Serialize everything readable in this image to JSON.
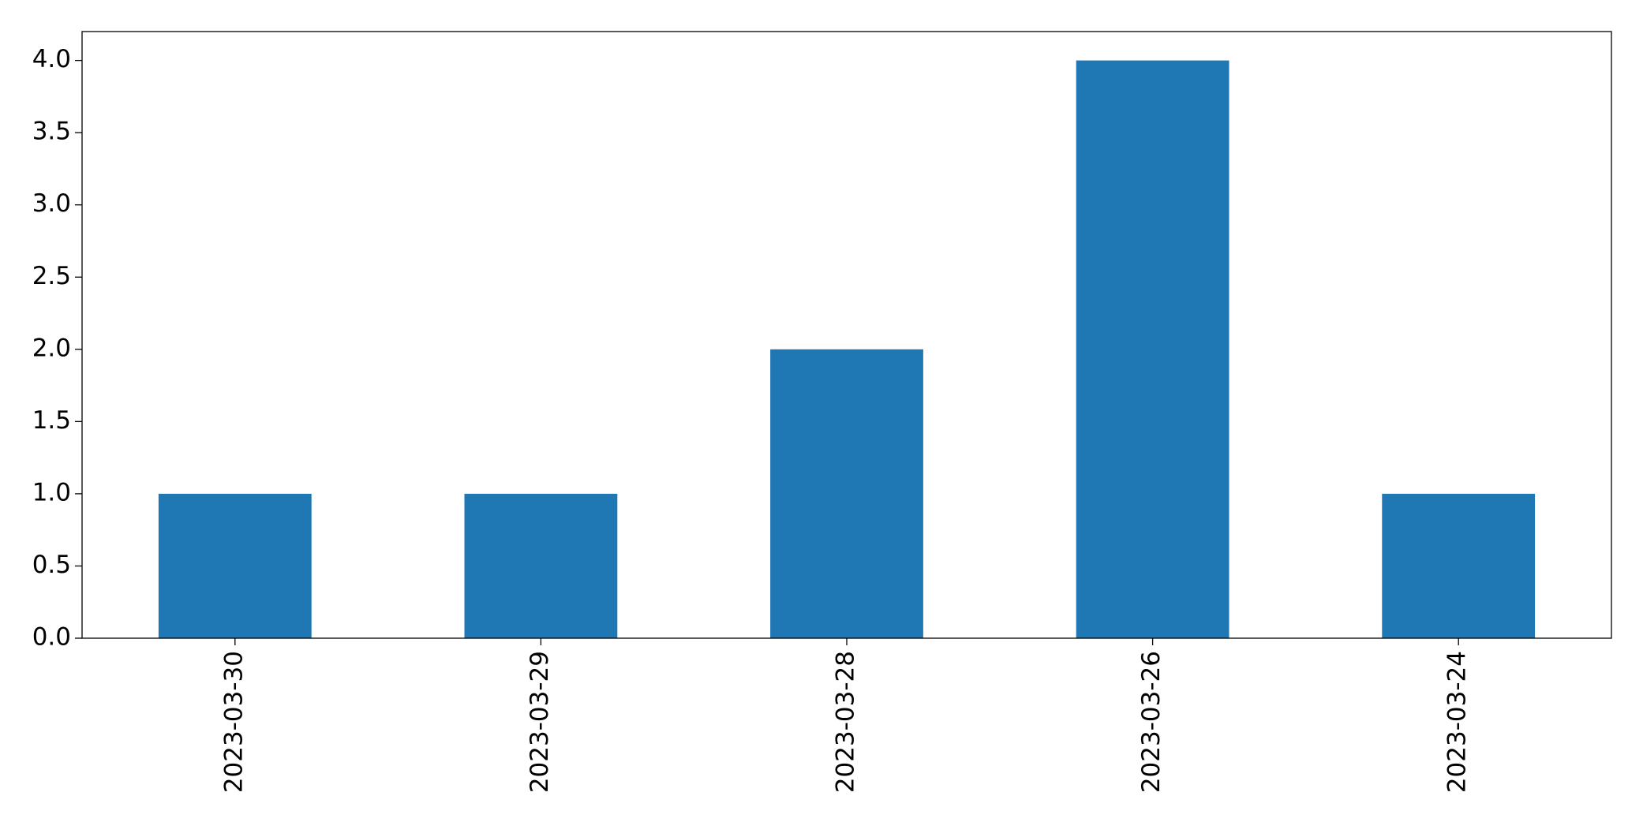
{
  "chart_data": {
    "type": "bar",
    "categories": [
      "2023-03-30",
      "2023-03-29",
      "2023-03-28",
      "2023-03-26",
      "2023-03-24"
    ],
    "values": [
      1,
      1,
      2,
      4,
      1
    ],
    "color": "#1f77b4",
    "ylim": [
      0,
      4.2
    ],
    "yticks": [
      {
        "value": 0,
        "label": "0.0"
      },
      0.5,
      {
        "value": 1,
        "label": "1.0"
      },
      1.5,
      {
        "value": 2,
        "label": "2.0"
      },
      2.5,
      {
        "value": 3,
        "label": "3.0"
      },
      3.5,
      {
        "value": 4,
        "label": "4.0"
      }
    ],
    "grid": false
  }
}
